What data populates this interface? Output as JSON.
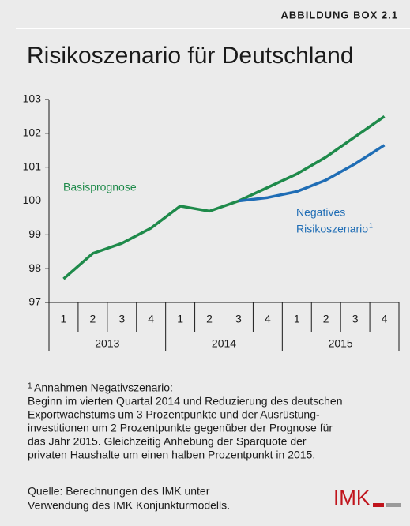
{
  "header": {
    "label": "ABBILDUNG BOX 2.1"
  },
  "chart_data": {
    "type": "line",
    "title": "Risikoszenario für Deutschland",
    "categories": [
      "1",
      "2",
      "3",
      "4",
      "1",
      "2",
      "3",
      "4",
      "1",
      "2",
      "3",
      "4"
    ],
    "groups": [
      "2013",
      "2014",
      "2015"
    ],
    "series": [
      {
        "name": "Basisprognose",
        "color": "#1e8a4a",
        "values": [
          97.7,
          98.45,
          98.75,
          99.2,
          99.85,
          99.7,
          100.0,
          100.4,
          100.8,
          101.3,
          101.9,
          102.5
        ]
      },
      {
        "name": "Negatives Risikoszenario",
        "label_lines": [
          "Negatives",
          "Risikoszenario"
        ],
        "footnote_mark": "1",
        "color": "#1f6db5",
        "values": [
          null,
          null,
          null,
          null,
          null,
          null,
          100.0,
          100.1,
          100.28,
          100.62,
          101.1,
          101.65
        ]
      }
    ],
    "ylim": [
      97,
      103
    ],
    "yticks": [
      97,
      98,
      99,
      100,
      101,
      102,
      103
    ]
  },
  "footnote": {
    "mark": "1",
    "title": "Annahmen Negativszenario:",
    "lines": [
      "Beginn im vierten Quartal 2014 und Reduzierung des deutschen",
      "Exportwachstums um 3 Prozentpunkte und der Ausrüstung-",
      "investitionen um 2 Prozentpunkte gegenüber der Prognose für",
      "das Jahr 2015. Gleichzeitig Anhebung der Sparquote der",
      "privaten Haushalte um einen halben Prozentpunkt in 2015."
    ]
  },
  "source": {
    "lines": [
      "Quelle: Berechnungen des IMK unter",
      "Verwendung des IMK Konjunkturmodells."
    ]
  },
  "logo": {
    "text": "IMK"
  }
}
